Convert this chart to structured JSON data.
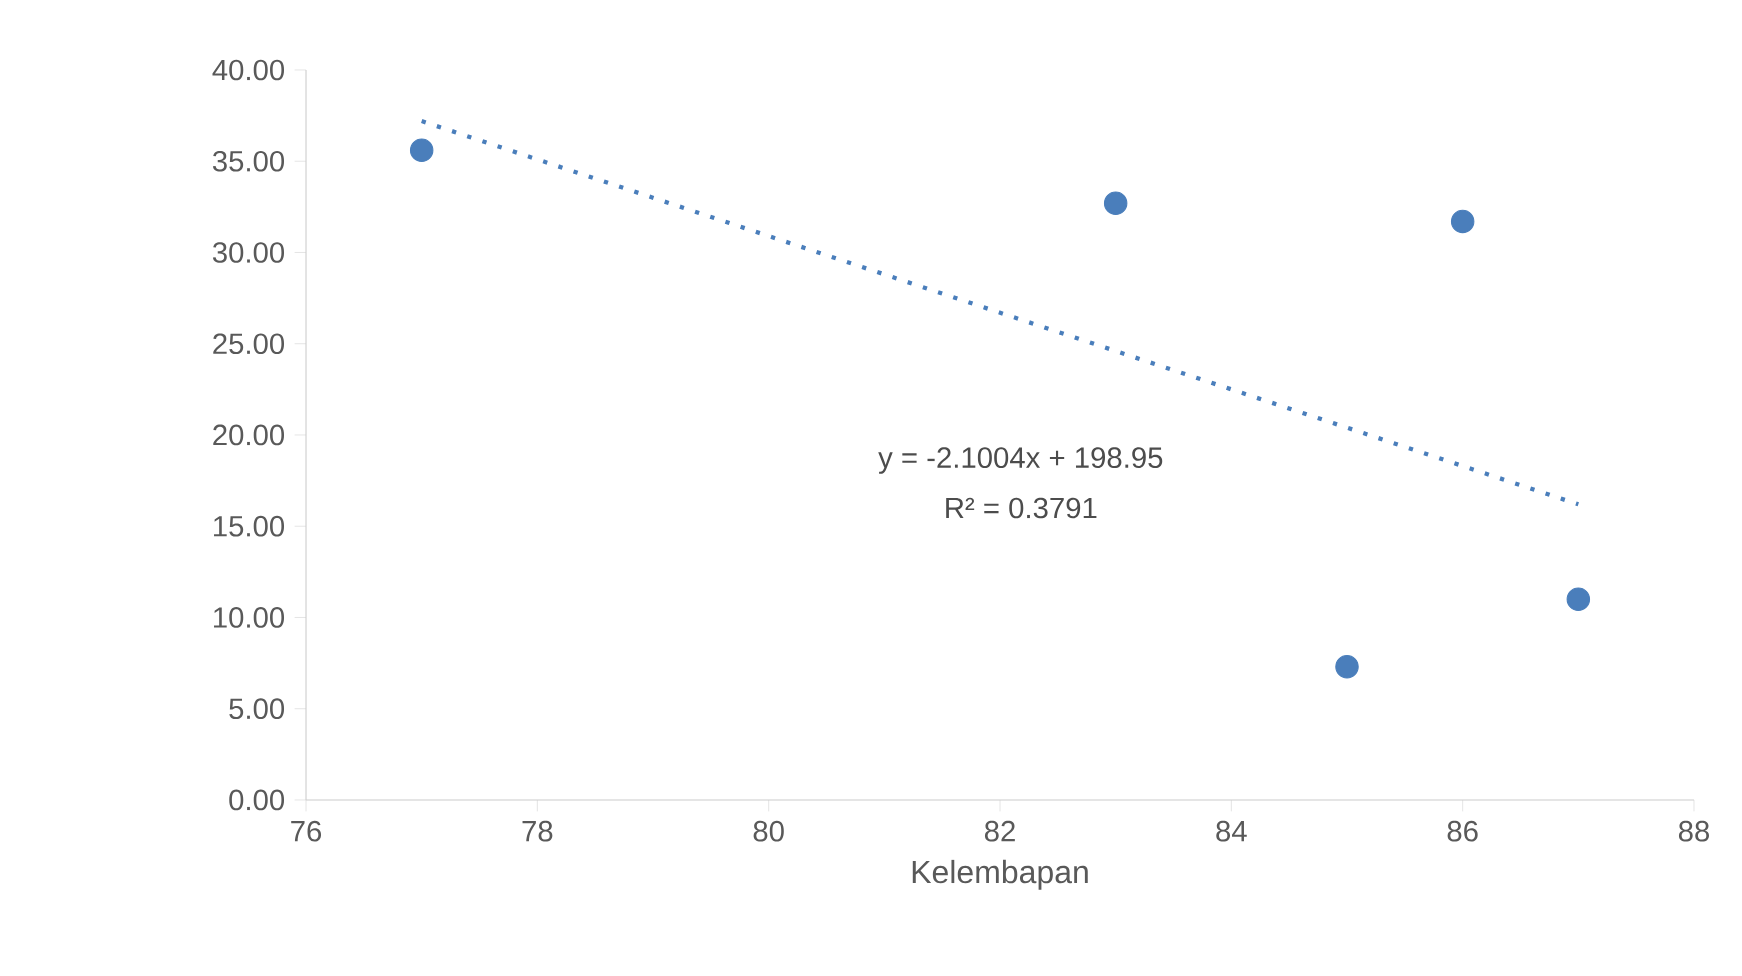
{
  "chart_data": {
    "type": "scatter",
    "xlabel": "Kelembapan",
    "xlim": [
      76,
      88
    ],
    "xticks": [
      76,
      78,
      80,
      82,
      84,
      86,
      88
    ],
    "ylim": [
      0,
      40
    ],
    "yticks": [
      {
        "value": 0,
        "label": "0.00"
      },
      {
        "value": 5,
        "label": "5.00"
      },
      {
        "value": 10,
        "label": "10.00"
      },
      {
        "value": 15,
        "label": "15.00"
      },
      {
        "value": 20,
        "label": "20.00"
      },
      {
        "value": 25,
        "label": "25.00"
      },
      {
        "value": 30,
        "label": "30.00"
      },
      {
        "value": 35,
        "label": "35.00"
      },
      {
        "value": 40,
        "label": "40.00"
      }
    ],
    "grid": false,
    "series": [
      {
        "color": "#4a7ebb",
        "marker": "circle",
        "x": [
          77,
          83,
          85,
          86,
          87
        ],
        "values": [
          35.6,
          32.7,
          7.3,
          31.7,
          11.0
        ]
      },
      {
        "type": "line",
        "color": "#4a7ebb",
        "marker": "none",
        "x": [
          77,
          87
        ],
        "values": [
          37.2,
          16.2
        ],
        "line_style": "dotted"
      }
    ],
    "annotations": [
      "y = -2.1004x  + 198.95",
      "R² = 0.3791"
    ]
  }
}
